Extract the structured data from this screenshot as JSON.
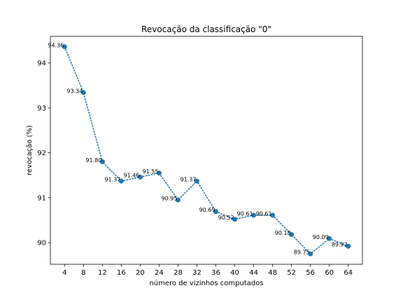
{
  "chart_data": {
    "type": "line",
    "title": "Revocação da classificação \"0\"",
    "xlabel": "número de vizinhos computados",
    "ylabel": "revocação (%)",
    "x": [
      4,
      8,
      12,
      16,
      20,
      24,
      28,
      32,
      36,
      40,
      44,
      48,
      52,
      56,
      60,
      64
    ],
    "series": [
      {
        "values": [
          94.36,
          93.34,
          91.8,
          91.37,
          91.46,
          91.55,
          90.95,
          91.37,
          90.69,
          90.52,
          90.61,
          90.61,
          90.18,
          89.75,
          90.09,
          89.92
        ],
        "point_labels": [
          "94.36",
          "93.34",
          "91.80",
          "91.37",
          "91.46",
          "91.55",
          "90.95",
          "91.37",
          "90.69",
          "90.52",
          "90.61",
          "90.61",
          "90.18",
          "89.75",
          "90.09",
          "89.92"
        ],
        "color": "#1f77b4",
        "line_style": "dotted",
        "marker": "circle"
      }
    ],
    "xticks": [
      4,
      8,
      12,
      16,
      20,
      24,
      28,
      32,
      36,
      40,
      44,
      48,
      52,
      56,
      60,
      64
    ],
    "yticks": [
      90,
      91,
      92,
      93,
      94
    ],
    "xlim": [
      1.0,
      67.0
    ],
    "ylim": [
      89.519,
      94.591
    ],
    "grid": false,
    "legend": "none"
  }
}
